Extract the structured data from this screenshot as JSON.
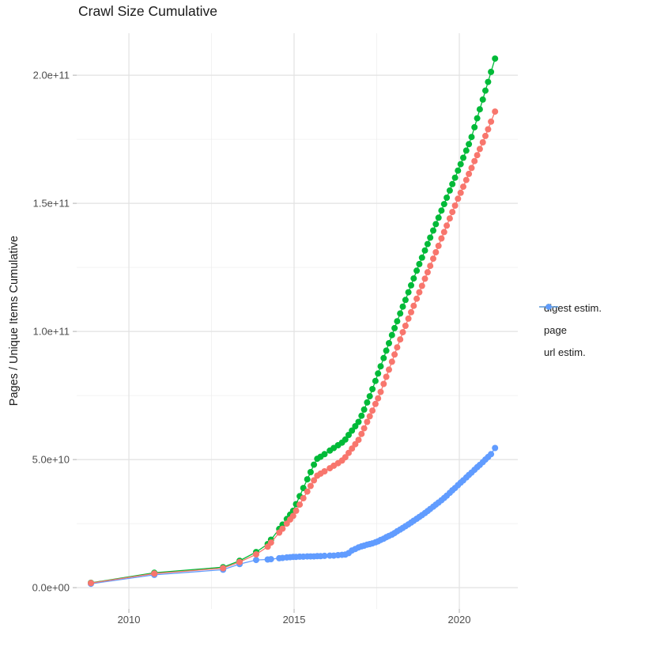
{
  "title": "Crawl Size Cumulative",
  "y_axis_label": "Pages / Unique Items Cumulative",
  "legend": {
    "position": "right",
    "items": [
      {
        "id": "digest-estim",
        "label": "digest estim.",
        "color": "#F8766D"
      },
      {
        "id": "page",
        "label": "page",
        "color": "#00BA38"
      },
      {
        "id": "url-estim",
        "label": "url estim.",
        "color": "#619CFF"
      }
    ]
  },
  "chart_data": {
    "type": "scatter",
    "title": "Crawl Size Cumulative",
    "xlabel": "",
    "ylabel": "Pages / Unique Items Cumulative",
    "grid": true,
    "legend_position": "right",
    "value_unit": 10000000000,
    "axes": {
      "x": {
        "domain": [
          2008.42,
          2021.77
        ],
        "range": [
          97,
          655
        ],
        "major": [
          2010,
          2015,
          2020
        ],
        "minor": [
          2012.5,
          2017.5
        ],
        "labels": [
          "2010",
          "2015",
          "2020"
        ]
      },
      "y": {
        "domain_e10": [
          -0.83,
          21.64
        ],
        "range": [
          770,
          42
        ],
        "major_e10": [
          0,
          5,
          10,
          15,
          20
        ],
        "minor_e10": [
          2.5,
          7.5,
          12.5,
          17.5
        ],
        "labels": [
          "0.0e+00",
          "5.0e+10",
          "1.0e+11",
          "1.5e+11",
          "2.0e+11"
        ]
      }
    },
    "x_years": [
      2008.85,
      2010.77,
      2012.85,
      2013.35,
      2013.85,
      2014.2,
      2014.3,
      2014.55,
      2014.65,
      2014.78,
      2014.88,
      2014.97,
      2015.06,
      2015.17,
      2015.28,
      2015.4,
      2015.5,
      2015.6,
      2015.7,
      2015.8,
      2015.92,
      2016.08,
      2016.2,
      2016.33,
      2016.45,
      2016.55,
      2016.65,
      2016.75,
      2016.85,
      2016.95,
      2017.04,
      2017.12,
      2017.21,
      2017.29,
      2017.37,
      2017.46,
      2017.54,
      2017.62,
      2017.71,
      2017.79,
      2017.87,
      2017.96,
      2018.04,
      2018.12,
      2018.21,
      2018.29,
      2018.37,
      2018.46,
      2018.54,
      2018.62,
      2018.71,
      2018.79,
      2018.87,
      2018.96,
      2019.04,
      2019.12,
      2019.21,
      2019.29,
      2019.37,
      2019.46,
      2019.54,
      2019.62,
      2019.71,
      2019.79,
      2019.87,
      2019.96,
      2020.04,
      2020.12,
      2020.21,
      2020.29,
      2020.37,
      2020.46,
      2020.54,
      2020.62,
      2020.71,
      2020.79,
      2020.87,
      2020.96,
      2021.08
    ],
    "series": [
      {
        "name": "digest estim.",
        "id": "digest-estim",
        "color": "#F8766D",
        "values_e10": [
          0.18,
          0.55,
          0.76,
          1.0,
          1.3,
          1.6,
          1.76,
          2.15,
          2.3,
          2.5,
          2.66,
          2.8,
          3.0,
          3.24,
          3.49,
          3.75,
          3.97,
          4.19,
          4.37,
          4.45,
          4.54,
          4.66,
          4.76,
          4.86,
          4.96,
          5.09,
          5.26,
          5.43,
          5.6,
          5.77,
          6.0,
          6.22,
          6.47,
          6.69,
          6.91,
          7.17,
          7.39,
          7.64,
          7.95,
          8.23,
          8.51,
          8.82,
          9.1,
          9.38,
          9.69,
          9.97,
          10.22,
          10.5,
          10.75,
          11.0,
          11.28,
          11.53,
          11.78,
          12.06,
          12.31,
          12.56,
          12.84,
          13.09,
          13.34,
          13.63,
          13.88,
          14.13,
          14.41,
          14.66,
          14.91,
          15.18,
          15.41,
          15.65,
          15.91,
          16.15,
          16.38,
          16.65,
          16.88,
          17.12,
          17.38,
          17.63,
          17.89,
          18.19,
          18.58
        ]
      },
      {
        "name": "page",
        "id": "page",
        "color": "#00BA38",
        "values_e10": [
          0.19,
          0.58,
          0.8,
          1.05,
          1.39,
          1.7,
          1.87,
          2.29,
          2.46,
          2.68,
          2.85,
          3.0,
          3.26,
          3.57,
          3.89,
          4.23,
          4.51,
          4.8,
          5.03,
          5.11,
          5.21,
          5.35,
          5.45,
          5.56,
          5.66,
          5.78,
          5.96,
          6.13,
          6.3,
          6.47,
          6.71,
          6.95,
          7.23,
          7.47,
          7.75,
          8.07,
          8.36,
          8.64,
          8.96,
          9.25,
          9.54,
          9.86,
          10.13,
          10.4,
          10.7,
          10.97,
          11.23,
          11.53,
          11.8,
          12.07,
          12.37,
          12.63,
          12.88,
          13.16,
          13.41,
          13.66,
          13.94,
          14.19,
          14.44,
          14.72,
          14.97,
          15.22,
          15.5,
          15.75,
          16.0,
          16.28,
          16.53,
          16.78,
          17.06,
          17.31,
          17.59,
          17.97,
          18.32,
          18.67,
          19.05,
          19.4,
          19.74,
          20.13,
          20.65
        ]
      },
      {
        "name": "url estim.",
        "id": "url-estim",
        "color": "#619CFF",
        "values_e10": [
          0.15,
          0.5,
          0.7,
          0.92,
          1.08,
          1.1,
          1.11,
          1.15,
          1.16,
          1.18,
          1.19,
          1.2,
          1.2,
          1.21,
          1.21,
          1.22,
          1.22,
          1.22,
          1.23,
          1.23,
          1.24,
          1.25,
          1.25,
          1.27,
          1.28,
          1.29,
          1.35,
          1.45,
          1.51,
          1.57,
          1.61,
          1.64,
          1.68,
          1.7,
          1.73,
          1.77,
          1.81,
          1.86,
          1.91,
          1.97,
          2.02,
          2.07,
          2.13,
          2.2,
          2.27,
          2.33,
          2.4,
          2.47,
          2.54,
          2.61,
          2.69,
          2.76,
          2.83,
          2.91,
          2.99,
          3.07,
          3.16,
          3.24,
          3.32,
          3.41,
          3.5,
          3.59,
          3.7,
          3.8,
          3.89,
          4.0,
          4.1,
          4.19,
          4.3,
          4.4,
          4.49,
          4.6,
          4.7,
          4.79,
          4.9,
          5.0,
          5.1,
          5.21,
          5.45
        ]
      }
    ]
  }
}
